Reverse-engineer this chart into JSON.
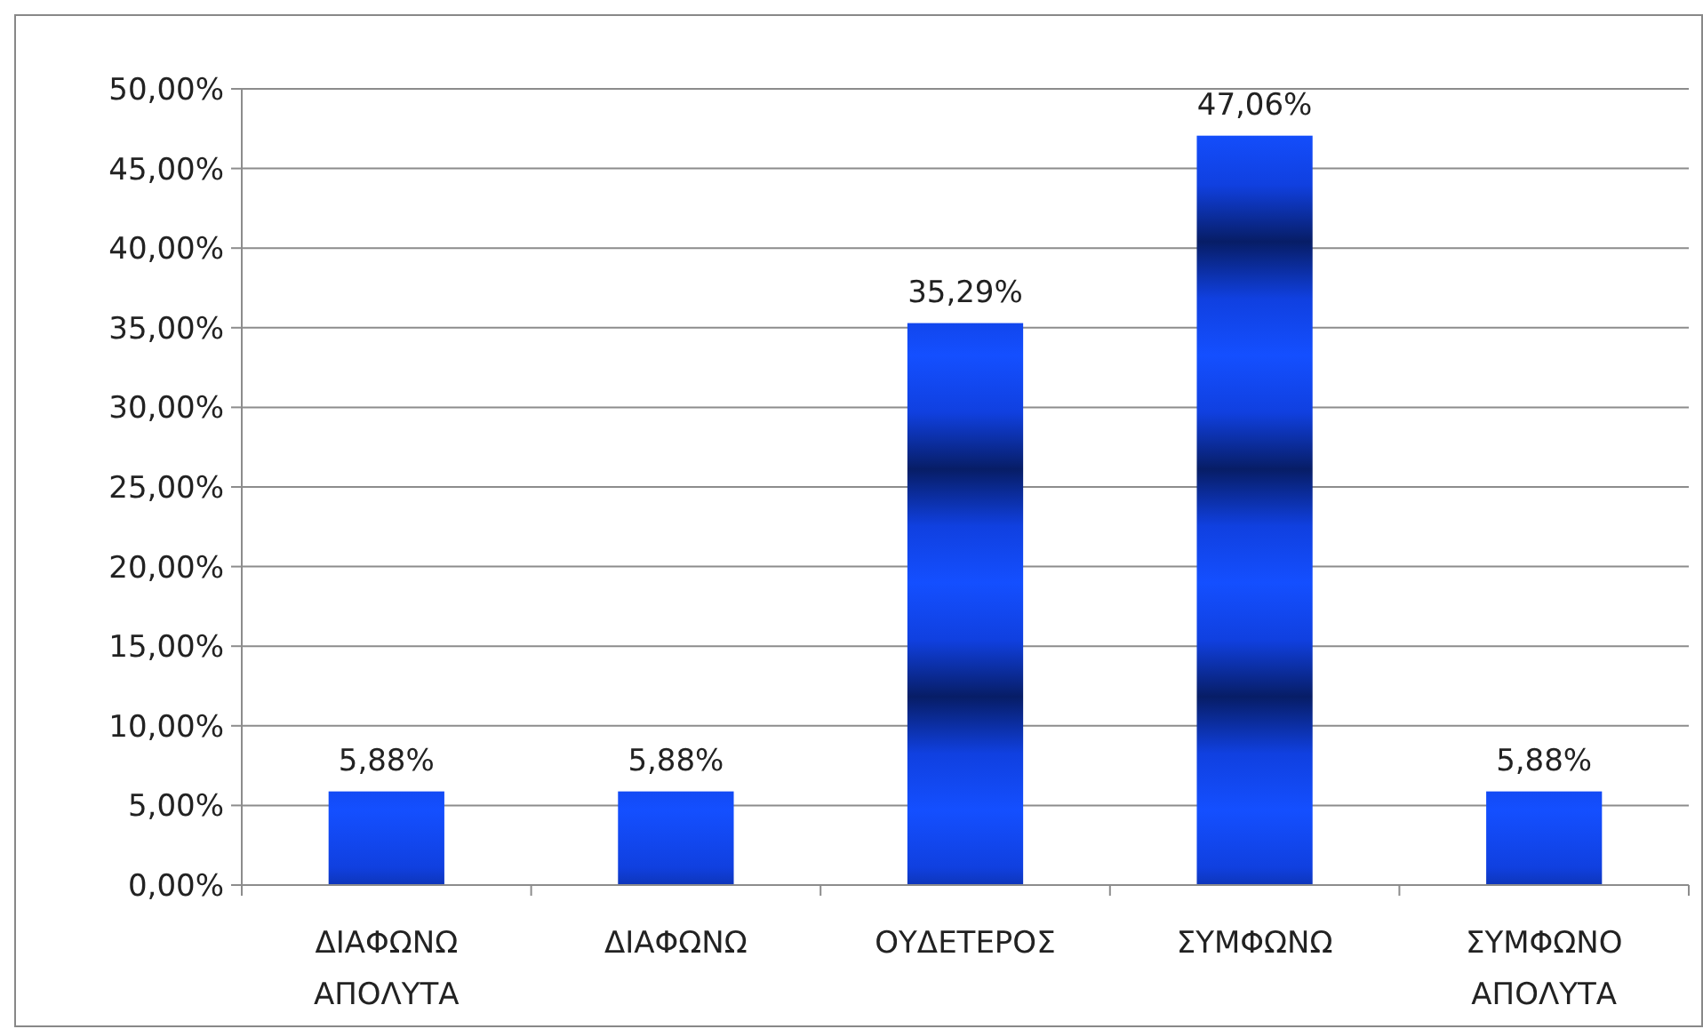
{
  "chart_data": {
    "type": "bar",
    "categories": [
      "ΔΙΑΦΩΝΩ ΑΠΟΛΥΤΑ",
      "ΔΙΑΦΩΝΩ",
      "ΟΥΔΕΤΕΡΟΣ",
      "ΣΥΜΦΩΝΩ",
      "ΣΥΜΦΩΝΟ ΑΠΟΛΥΤΑ"
    ],
    "values": [
      5.88,
      5.88,
      35.29,
      47.06,
      5.88
    ],
    "value_labels": [
      "5,88%",
      "5,88%",
      "35,29%",
      "47,06%",
      "5,88%"
    ],
    "color": "#1040e0",
    "ylim": [
      0,
      50
    ],
    "yticks": [
      {
        "value": 0,
        "label": "0,00%"
      },
      {
        "value": 5,
        "label": "5,00%"
      },
      {
        "value": 10,
        "label": "10,00%"
      },
      {
        "value": 15,
        "label": "15,00%"
      },
      {
        "value": 20,
        "label": "20,00%"
      },
      {
        "value": 25,
        "label": "25,00%"
      },
      {
        "value": 30,
        "label": "30,00%"
      },
      {
        "value": 35,
        "label": "35,00%"
      },
      {
        "value": 40,
        "label": "40,00%"
      },
      {
        "value": 45,
        "label": "45,00%"
      },
      {
        "value": 50,
        "label": "50,00%"
      }
    ],
    "grid": "y"
  }
}
